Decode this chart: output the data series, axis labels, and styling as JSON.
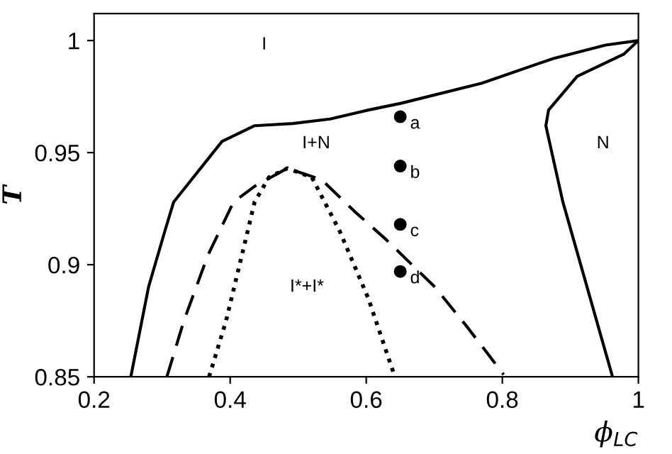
{
  "chart_data": {
    "type": "line",
    "xlabel": "ϕ$_{LC}$",
    "ylabel": "T",
    "xlim": [
      0.2,
      1
    ],
    "ylim": [
      0.85,
      1.012
    ],
    "xticks": [
      0.2,
      0.4,
      0.6,
      0.8,
      1
    ],
    "yticks": [
      0.85,
      0.9,
      0.95,
      1
    ],
    "grid": false,
    "legend": false,
    "series": [
      {
        "color": "#000000",
        "line_style": "solid",
        "marker": "none",
        "x": [
          0.254,
          0.28,
          0.304,
          0.317,
          0.346,
          0.388,
          0.436,
          0.492,
          0.547,
          0.603,
          0.651,
          0.77,
          0.875,
          0.952,
          1.0
        ],
        "values": [
          0.85,
          0.89,
          0.915,
          0.928,
          0.939,
          0.955,
          0.962,
          0.963,
          0.965,
          0.969,
          0.972,
          0.981,
          0.992,
          0.998,
          1.0
        ]
      },
      {
        "color": "#000000",
        "line_style": "solid",
        "marker": "none",
        "x": [
          1.0,
          0.979,
          0.91,
          0.868,
          0.864,
          0.875,
          0.889,
          0.962
        ],
        "values": [
          1.0,
          0.994,
          0.984,
          0.969,
          0.962,
          0.947,
          0.928,
          0.85
        ]
      },
      {
        "color": "#000000",
        "line_style": "dashed",
        "marker": "none",
        "x": [
          0.307,
          0.332,
          0.367,
          0.405,
          0.436,
          0.484,
          0.534,
          0.582,
          0.63,
          0.701,
          0.749,
          0.802
        ],
        "values": [
          0.85,
          0.875,
          0.904,
          0.928,
          0.935,
          0.943,
          0.938,
          0.924,
          0.911,
          0.89,
          0.872,
          0.851
        ]
      },
      {
        "color": "#000000",
        "line_style": "dotted",
        "marker": "none",
        "x": [
          0.369,
          0.394,
          0.421,
          0.436,
          0.457,
          0.484,
          0.52,
          0.561,
          0.603,
          0.641
        ],
        "values": [
          0.85,
          0.875,
          0.909,
          0.928,
          0.939,
          0.943,
          0.939,
          0.915,
          0.885,
          0.851
        ]
      },
      {
        "type": "scatter",
        "color": "#000000",
        "marker": "circle",
        "x": [
          0.65,
          0.65,
          0.65,
          0.65
        ],
        "values": [
          0.966,
          0.944,
          0.918,
          0.897
        ],
        "value_labels": [
          "a",
          "b",
          "c",
          "d"
        ]
      }
    ],
    "annotations": [
      "I",
      "I+N",
      "N",
      "I*+I*"
    ]
  }
}
